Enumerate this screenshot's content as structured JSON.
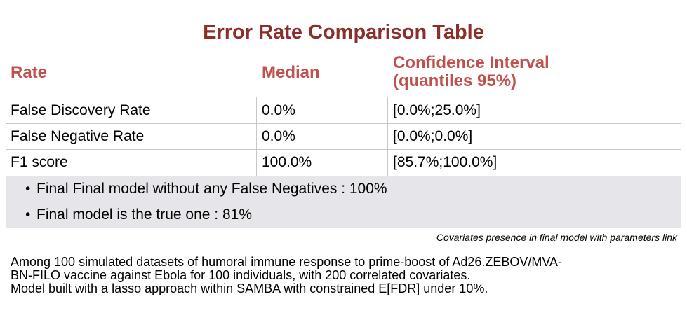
{
  "table": {
    "title": "Error Rate Comparison Table",
    "headers": {
      "rate": "Rate",
      "median": "Median",
      "ci_line1": "Confidence Interval",
      "ci_line2": "(quantiles 95%)"
    },
    "rows": [
      {
        "rate": "False Discovery Rate",
        "median": "0.0%",
        "ci": "[0.0%;25.0%]"
      },
      {
        "rate": "False Negative Rate",
        "median": "0.0%",
        "ci": "[0.0%;0.0%]"
      },
      {
        "rate": "F1 score",
        "median": "100.0%",
        "ci": "[85.7%;100.0%]"
      }
    ],
    "bullets": [
      "Final Final model without any False Negatives : 100%",
      "Final model is the true one : 81%"
    ],
    "caption": "Covariates presence in final model with parameters link"
  },
  "footnote": {
    "line1": "Among 100 simulated datasets of humoral immune response to prime-boost of Ad26.ZEBOV/MVA-",
    "line2": "BN-FILO vaccine against Ebola for 100 individuals, with 200 correlated covariates.",
    "line3": "Model built with a lasso approach within SAMBA with constrained E[FDR] under 10%."
  }
}
